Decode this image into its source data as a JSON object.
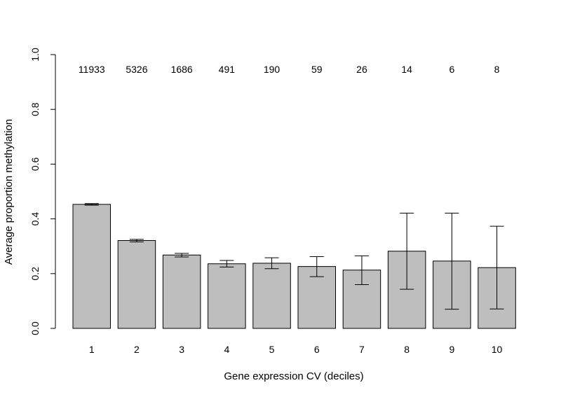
{
  "chart_data": {
    "type": "bar",
    "xlabel": "Gene expression CV (deciles)",
    "ylabel": "Average proportion methylation",
    "ylim": [
      0,
      1
    ],
    "y_ticks": [
      "0.0",
      "0.2",
      "0.4",
      "0.6",
      "0.8",
      "1.0"
    ],
    "categories": [
      "1",
      "2",
      "3",
      "4",
      "5",
      "6",
      "7",
      "8",
      "9",
      "10"
    ],
    "values": [
      0.453,
      0.321,
      0.268,
      0.236,
      0.238,
      0.226,
      0.213,
      0.282,
      0.246,
      0.222
    ],
    "error_low": [
      0.45,
      0.316,
      0.261,
      0.224,
      0.218,
      0.189,
      0.16,
      0.143,
      0.07,
      0.071
    ],
    "error_high": [
      0.456,
      0.325,
      0.274,
      0.248,
      0.258,
      0.262,
      0.265,
      0.421,
      0.421,
      0.373
    ],
    "counts": [
      "11933",
      "5326",
      "1686",
      "491",
      "190",
      "59",
      "26",
      "14",
      "6",
      "8"
    ],
    "colors": {
      "bar_fill": "#bebebe",
      "bar_stroke": "#000000"
    },
    "grid": false,
    "legend": "none"
  }
}
